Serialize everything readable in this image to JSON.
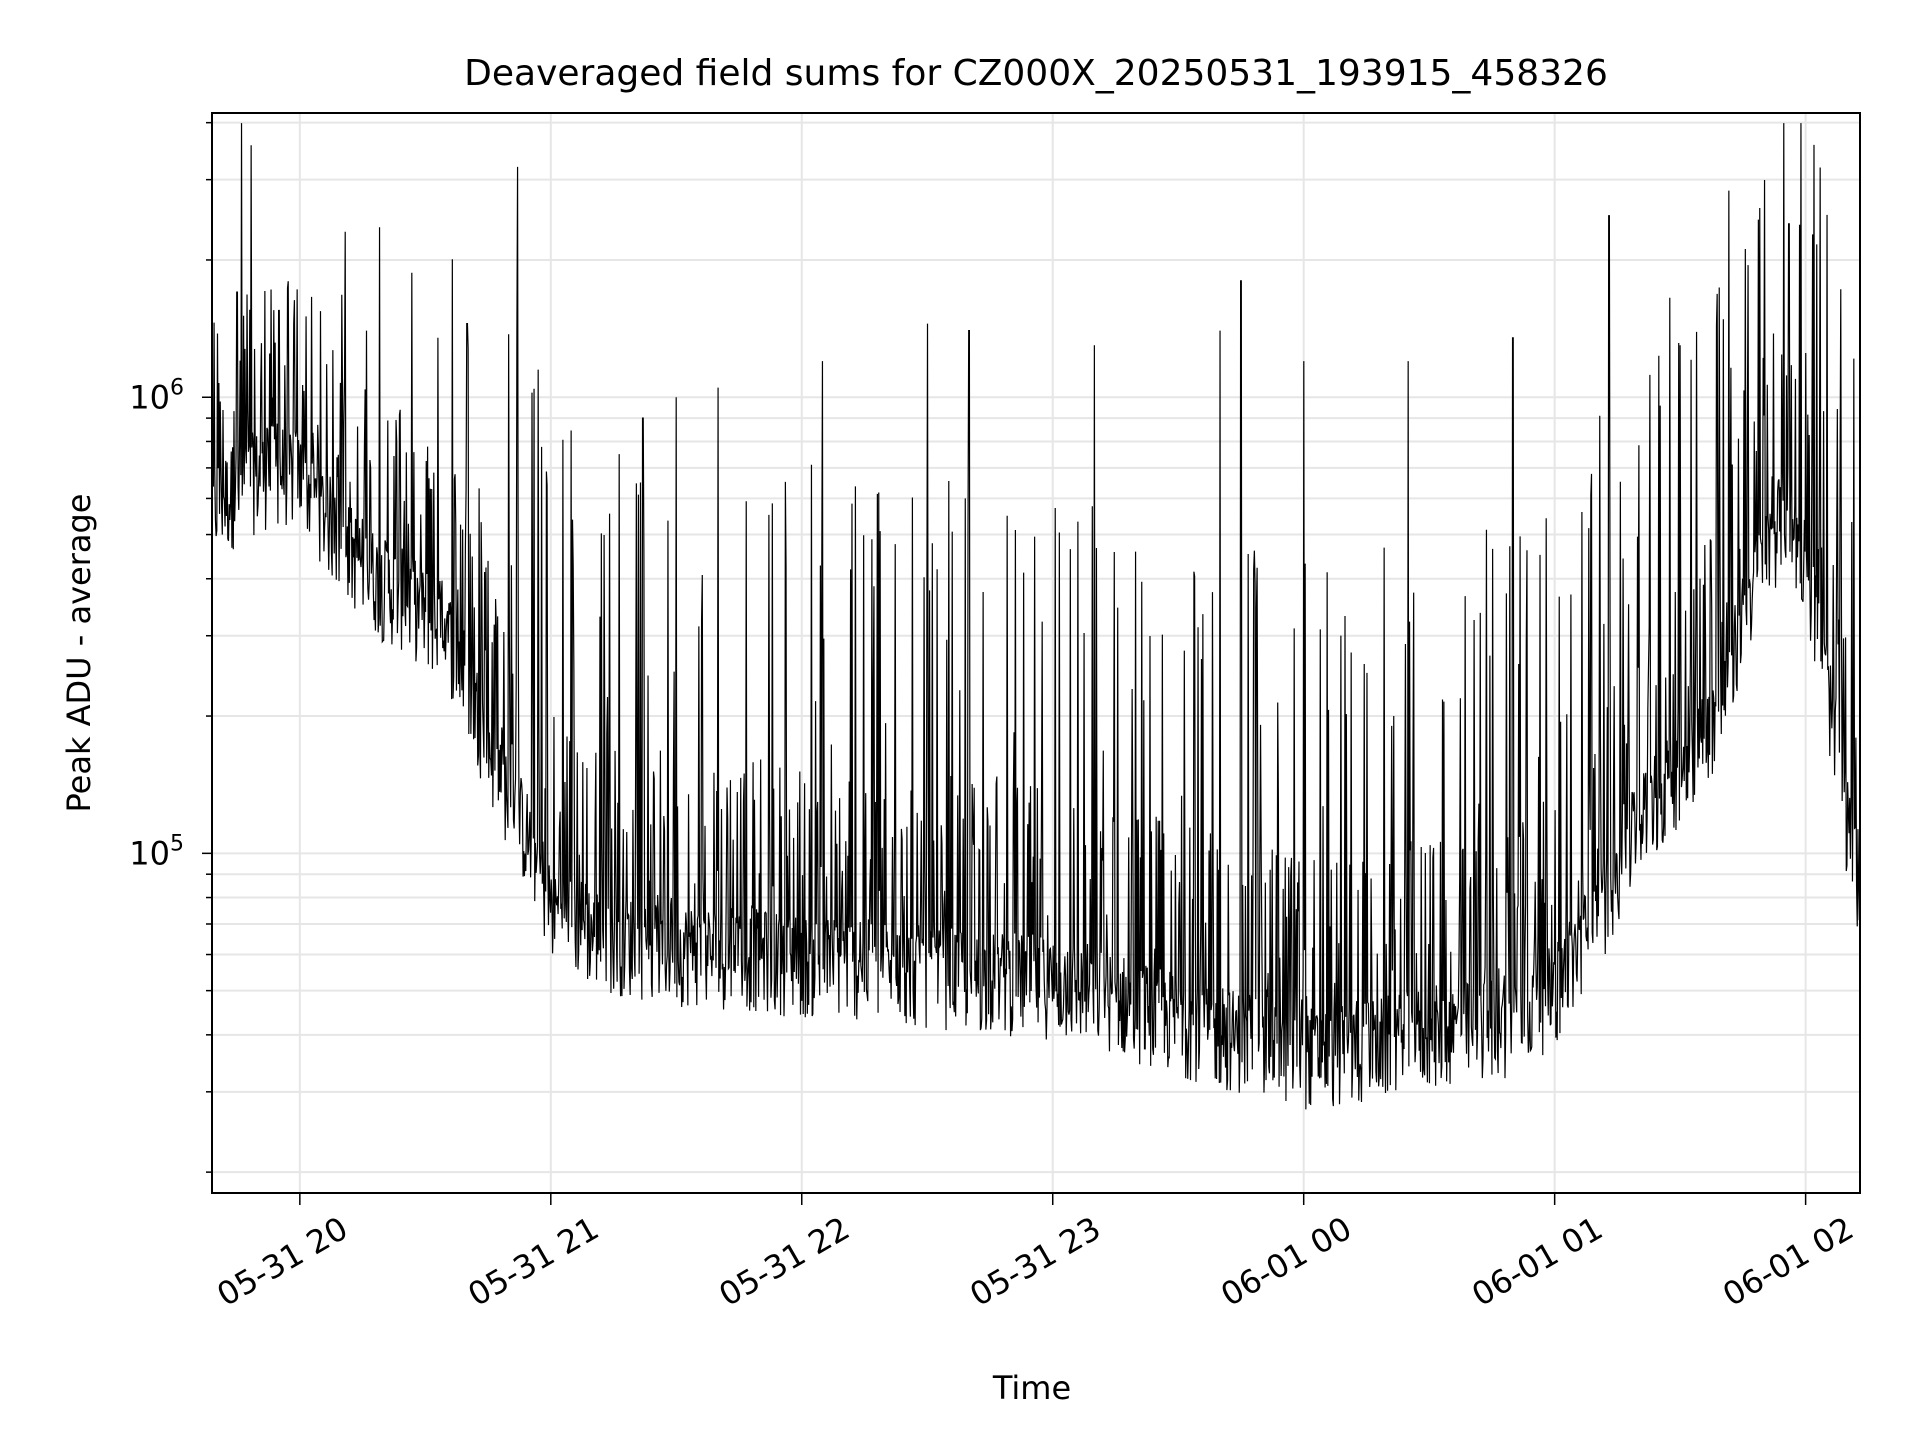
{
  "chart_data": {
    "type": "line",
    "title": "Deaveraged field sums for CZ000X_20250531_193915_458326",
    "xlabel": "Time",
    "ylabel": "Peak ADU - average",
    "x_tick_labels": [
      "05-31 20",
      "05-31 21",
      "05-31 22",
      "05-31 23",
      "06-01 00",
      "06-01 01",
      "06-01 02"
    ],
    "x_ticks": [
      "2025-05-31 20:00",
      "2025-05-31 21:00",
      "2025-05-31 22:00",
      "2025-05-31 23:00",
      "2025-06-01 00:00",
      "2025-06-01 01:00",
      "2025-06-01 02:00"
    ],
    "y_scale": "log",
    "y_tick_labels": [
      {
        "base": "10",
        "exp": "5",
        "value": 100000
      },
      {
        "base": "10",
        "exp": "6",
        "value": 1000000
      }
    ],
    "xlim": [
      "2025-05-31 19:39",
      "2025-06-01 02:13"
    ],
    "ylim": [
      18000,
      4200000
    ],
    "grid": true,
    "line_color": "#000000",
    "grid_color": "#e6e6e6",
    "series": [
      {
        "x": [
          "2025-05-31 19:39",
          "2025-05-31 19:45",
          "2025-05-31 19:50",
          "2025-05-31 19:55",
          "2025-05-31 20:00",
          "2025-05-31 20:05",
          "2025-05-31 20:10",
          "2025-05-31 20:15",
          "2025-05-31 20:20",
          "2025-05-31 20:25",
          "2025-05-31 20:30",
          "2025-05-31 20:35",
          "2025-05-31 20:40",
          "2025-05-31 20:45",
          "2025-05-31 20:50",
          "2025-05-31 20:55",
          "2025-05-31 21:00",
          "2025-05-31 21:05",
          "2025-05-31 21:10",
          "2025-05-31 21:15",
          "2025-05-31 21:20",
          "2025-05-31 21:25",
          "2025-05-31 21:30",
          "2025-05-31 21:40",
          "2025-05-31 21:50",
          "2025-05-31 22:00",
          "2025-05-31 22:10",
          "2025-05-31 22:20",
          "2025-05-31 22:30",
          "2025-05-31 22:40",
          "2025-05-31 22:50",
          "2025-05-31 23:00",
          "2025-05-31 23:10",
          "2025-05-31 23:20",
          "2025-05-31 23:30",
          "2025-05-31 23:40",
          "2025-05-31 23:50",
          "2025-06-01 00:00",
          "2025-06-01 00:10",
          "2025-06-01 00:20",
          "2025-06-01 00:30",
          "2025-06-01 00:40",
          "2025-06-01 00:50",
          "2025-06-01 01:00",
          "2025-06-01 01:10",
          "2025-06-01 01:20",
          "2025-06-01 01:30",
          "2025-06-01 01:40",
          "2025-06-01 01:45",
          "2025-06-01 01:50",
          "2025-06-01 01:55",
          "2025-06-01 02:00",
          "2025-06-01 02:05",
          "2025-06-01 02:10",
          "2025-06-01 02:13"
        ],
        "y_baseline": [
          600000,
          650000,
          700000,
          720000,
          700000,
          600000,
          500000,
          450000,
          400000,
          380000,
          350000,
          320000,
          250000,
          180000,
          140000,
          110000,
          80000,
          75000,
          70000,
          68000,
          66000,
          65000,
          64000,
          63000,
          62000,
          60000,
          60000,
          58000,
          57000,
          56000,
          55000,
          54000,
          52000,
          48000,
          45000,
          42000,
          40000,
          38000,
          38000,
          40000,
          42000,
          43000,
          45000,
          52000,
          75000,
          120000,
          160000,
          220000,
          350000,
          450000,
          600000,
          450000,
          250000,
          120000,
          90000
        ],
        "y_spikes": [
          {
            "x": "2025-05-31 19:45",
            "y": 1700000
          },
          {
            "x": "2025-05-31 19:55",
            "y": 1550000
          },
          {
            "x": "2025-05-31 20:16",
            "y": 1400000
          },
          {
            "x": "2025-05-31 20:33",
            "y": 1350000
          },
          {
            "x": "2025-05-31 20:40",
            "y": 1450000
          },
          {
            "x": "2025-05-31 20:52",
            "y": 3200000
          },
          {
            "x": "2025-05-31 20:57",
            "y": 1150000
          },
          {
            "x": "2025-05-31 21:22",
            "y": 900000
          },
          {
            "x": "2025-05-31 21:30",
            "y": 1000000
          },
          {
            "x": "2025-05-31 21:40",
            "y": 1050000
          },
          {
            "x": "2025-05-31 22:05",
            "y": 1200000
          },
          {
            "x": "2025-05-31 22:30",
            "y": 1450000
          },
          {
            "x": "2025-05-31 22:40",
            "y": 1400000
          },
          {
            "x": "2025-05-31 23:10",
            "y": 1300000
          },
          {
            "x": "2025-05-31 23:40",
            "y": 1400000
          },
          {
            "x": "2025-05-31 23:45",
            "y": 1800000
          },
          {
            "x": "2025-06-01 00:00",
            "y": 1200000
          },
          {
            "x": "2025-06-01 00:25",
            "y": 1200000
          },
          {
            "x": "2025-06-01 00:50",
            "y": 1350000
          },
          {
            "x": "2025-06-01 01:13",
            "y": 2500000
          },
          {
            "x": "2025-06-01 01:30",
            "y": 1300000
          },
          {
            "x": "2025-06-01 01:49",
            "y": 2600000
          },
          {
            "x": "2025-06-01 01:56",
            "y": 2400000
          },
          {
            "x": "2025-06-01 02:00",
            "y": 1250000
          }
        ]
      }
    ]
  }
}
